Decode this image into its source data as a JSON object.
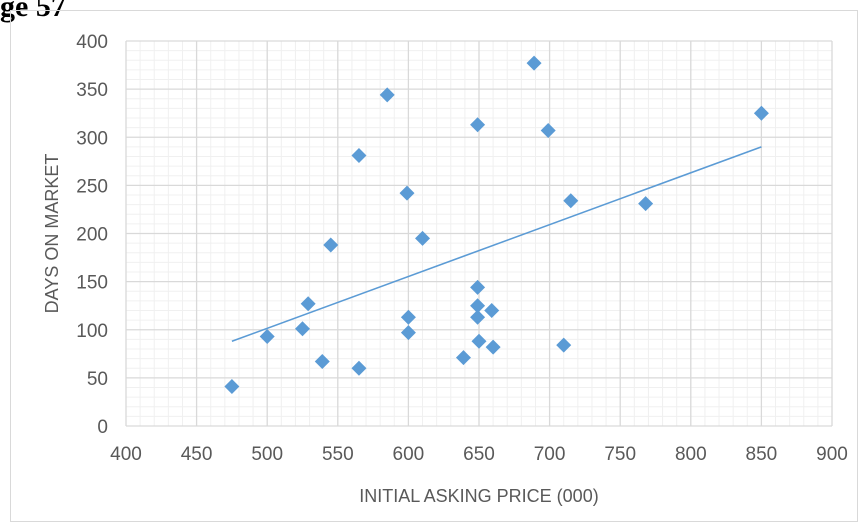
{
  "header_fragment": "ge 57",
  "chart_data": {
    "type": "scatter",
    "title": "",
    "xlabel": "INITIAL ASKING PRICE (000)",
    "ylabel": "DAYS ON MARKET",
    "xlim": [
      400,
      900
    ],
    "ylim": [
      0,
      400
    ],
    "x_ticks": [
      400,
      450,
      500,
      550,
      600,
      650,
      700,
      750,
      800,
      850,
      900
    ],
    "y_ticks": [
      0,
      50,
      100,
      150,
      200,
      250,
      300,
      350,
      400
    ],
    "grid": "major and minor",
    "legend": "none",
    "marker_color": "#5b9bd5",
    "trendline_color": "#5b9bd5",
    "series": [
      {
        "points": [
          [
            475,
            41
          ],
          [
            500,
            93
          ],
          [
            525,
            101
          ],
          [
            529,
            127
          ],
          [
            539,
            67
          ],
          [
            545,
            188
          ],
          [
            565,
            281
          ],
          [
            565,
            60
          ],
          [
            585,
            344
          ],
          [
            599,
            242
          ],
          [
            600,
            113
          ],
          [
            600,
            97
          ],
          [
            610,
            195
          ],
          [
            639,
            71
          ],
          [
            649,
            313
          ],
          [
            649,
            144
          ],
          [
            649,
            125
          ],
          [
            649,
            113
          ],
          [
            650,
            88
          ],
          [
            659,
            120
          ],
          [
            660,
            82
          ],
          [
            689,
            377
          ],
          [
            699,
            307
          ],
          [
            710,
            84
          ],
          [
            715,
            234
          ],
          [
            768,
            231
          ],
          [
            850,
            325
          ]
        ]
      }
    ],
    "trendline": {
      "x": [
        475,
        850
      ],
      "y": [
        88,
        290
      ]
    }
  }
}
